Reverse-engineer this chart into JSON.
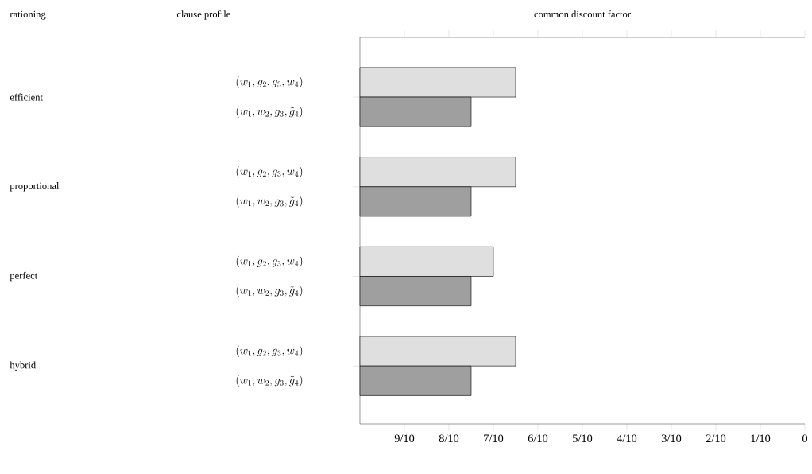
{
  "chart_data": {
    "type": "bar",
    "orientation": "horizontal",
    "xlabel": "common discount factor",
    "categories": [
      "(w_1, g_2, g_3, w_4)",
      "(w_1, w_2, g_3, \\tilde{g}_4)",
      "(w_1, g_2, g_3, w_4)",
      "(w_1, w_2, g_3, \\tilde{g}_4)",
      "(w_1, g_2, g_3, w_4)",
      "(w_1, w_2, g_3, \\tilde{g}_4)",
      "(w_1, g_2, g_3, w_4)",
      "(w_1, w_2, g_3, \\tilde{g}_4)"
    ],
    "base": [
      1,
      1,
      1,
      1,
      1,
      1,
      1,
      1
    ],
    "values": [
      -0.35,
      -0.25,
      -0.35,
      -0.25,
      -0.3,
      -0.25,
      -0.35,
      -0.25
    ],
    "colors": [
      "#dfdfdf",
      "#9f9f9f",
      "#dfdfdf",
      "#9f9f9f",
      "#dfdfdf",
      "#9f9f9f",
      "#dfdfdf",
      "#9f9f9f"
    ],
    "annotations": [
      "rationing",
      "clause profile",
      "efficient",
      "proportional",
      "perfect",
      "hybrid"
    ],
    "xlim": [
      1,
      0
    ],
    "xticks": [
      {
        "value": 0.9,
        "label": "9/10"
      },
      {
        "value": 0.8,
        "label": "8/10"
      },
      {
        "value": 0.7,
        "label": "7/10"
      },
      {
        "value": 0.6,
        "label": "6/10"
      },
      {
        "value": 0.5,
        "label": "5/10"
      },
      {
        "value": 0.4,
        "label": "4/10"
      },
      {
        "value": 0.3,
        "label": "3/10"
      },
      {
        "value": 0.2,
        "label": "2/10"
      },
      {
        "value": 0.1,
        "label": "1/10"
      },
      {
        "value": 0,
        "label": "0"
      }
    ]
  }
}
